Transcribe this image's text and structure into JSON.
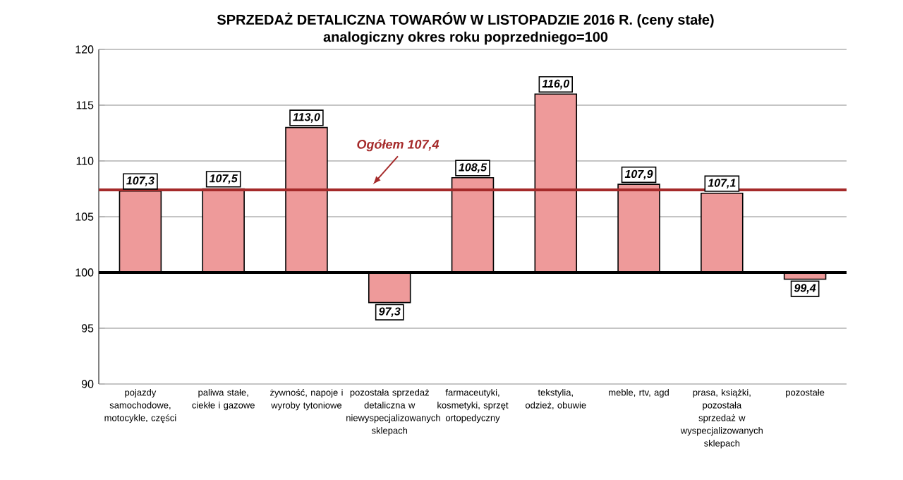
{
  "chart_data": {
    "type": "bar",
    "title": "SPRZEDAŻ DETALICZNA TOWARÓW W LISTOPADZIE 2016 R. (ceny stałe)",
    "subtitle": "analogiczny okres roku poprzedniego=100",
    "categories": [
      "pojazdy samochodowe, motocykle, części",
      "paliwa stałe, ciekłe i gazowe",
      "żywność, napoje i wyroby tytoniowe",
      "pozostała sprzedaż detaliczna w niewyspecjalizowanych sklepach",
      "farmaceutyki, kosmetyki, sprzęt ortopedyczny",
      "tekstylia, odzież, obuwie",
      "meble, rtv, agd",
      "prasa, książki, pozostała sprzedaż w wyspecjalizowanych sklepach",
      "pozostałe"
    ],
    "base": [
      100,
      100,
      100,
      100,
      100,
      100,
      100,
      100,
      100
    ],
    "values": [
      7.3,
      7.5,
      13.0,
      -2.7,
      8.5,
      16.0,
      7.9,
      7.1,
      -0.6
    ],
    "value_labels": [
      "107,3",
      "107,5",
      "113,0",
      "97,3",
      "108,5",
      "116,0",
      "107,9",
      "107,1",
      "99,4"
    ],
    "color": "#ee9a9a",
    "ylim": [
      90,
      120
    ],
    "yticks": [
      90,
      95,
      100,
      105,
      110,
      115,
      120
    ],
    "grid": "y",
    "ref_lines": [
      {
        "axis": "y",
        "value": 100,
        "color": "#000000"
      },
      {
        "axis": "y",
        "value": 107.4,
        "label": "Ogółem 107,4",
        "color": "#a52a2a"
      }
    ]
  }
}
